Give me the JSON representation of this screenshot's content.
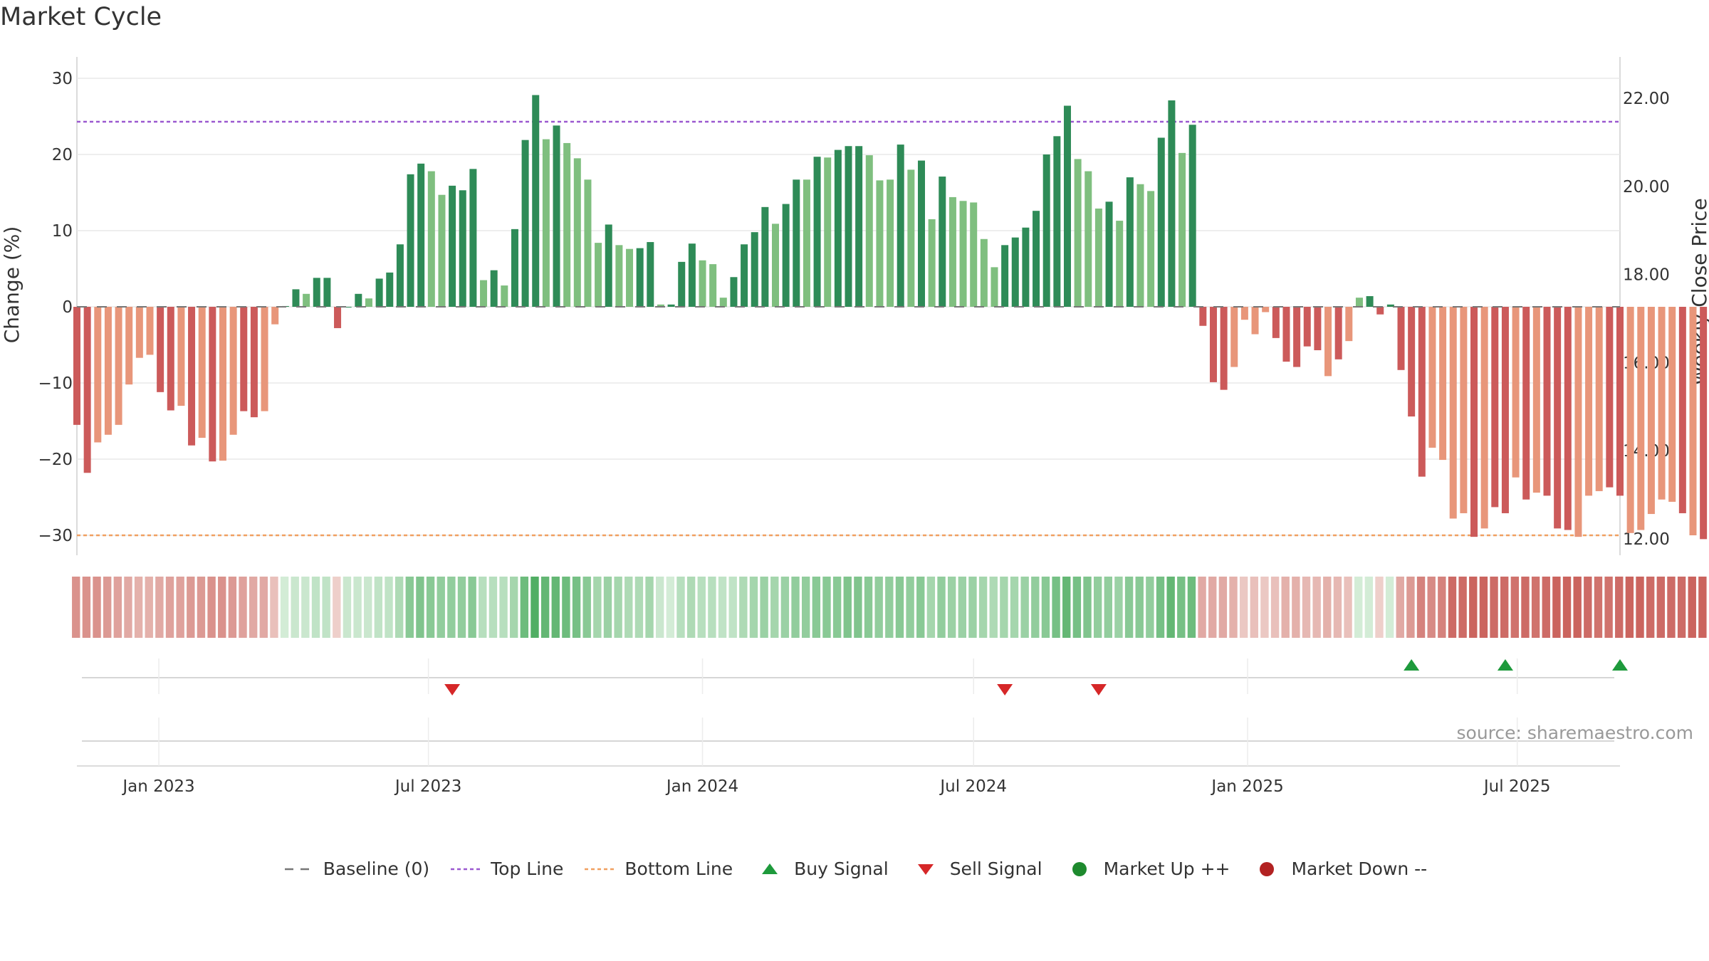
{
  "title": "Market Cycle",
  "source_text": "source: sharemaestro.com",
  "legend": [
    {
      "label": "Baseline (0)",
      "icon": "dash-line",
      "color": "#777777"
    },
    {
      "label": "Top Line",
      "icon": "dotted-line",
      "color": "#9b59d0"
    },
    {
      "label": "Bottom Line",
      "icon": "dotted-line",
      "color": "#f0a060"
    },
    {
      "label": "Buy Signal",
      "icon": "triangle-up",
      "color": "#1e9a3c"
    },
    {
      "label": "Sell Signal",
      "icon": "triangle-down",
      "color": "#d62728"
    },
    {
      "label": "Market Up ++",
      "icon": "circle",
      "color": "#1e8a2e"
    },
    {
      "label": "Market Down --",
      "icon": "circle",
      "color": "#b22222"
    }
  ],
  "chart_data": {
    "type": "bar",
    "title": "Market Cycle",
    "ylabel": "Change (%)",
    "y2label": "Weekly Close Price",
    "ylim": [
      -33,
      33
    ],
    "yticks": [
      30,
      20,
      10,
      0,
      -10,
      -20,
      -30
    ],
    "ytick_labels": [
      "30",
      "20",
      "10",
      "0",
      "−10",
      "−20",
      "−30"
    ],
    "y2lim": [
      11.6,
      23.1
    ],
    "y2ticks": [
      22.0,
      20.0,
      18.0,
      16.0,
      14.0,
      12.0
    ],
    "y2tick_labels": [
      "22.00",
      "20.00",
      "18.00",
      "16.00",
      "14.00",
      "12.00"
    ],
    "top_line": 24.3,
    "bottom_line": -30,
    "xdomain": [
      "2022-11-07",
      "2025-09-08"
    ],
    "xticks": [
      {
        "date": "2023-01-01",
        "label": "Jan 2023"
      },
      {
        "date": "2023-07-01",
        "label": "Jul 2023"
      },
      {
        "date": "2024-01-01",
        "label": "Jan 2024"
      },
      {
        "date": "2024-07-01",
        "label": "Jul 2024"
      },
      {
        "date": "2025-01-01",
        "label": "Jan 2025"
      },
      {
        "date": "2025-07-01",
        "label": "Jul 2025"
      }
    ],
    "start_week": "2022-11-07",
    "week_step_days": 7,
    "values": [
      -15.5,
      -21.8,
      -17.8,
      -16.8,
      -15.5,
      -10.2,
      -6.7,
      -6.3,
      -11.2,
      -13.6,
      -13.0,
      -18.2,
      -17.2,
      -20.3,
      -20.2,
      -16.8,
      -13.7,
      -14.5,
      -13.7,
      -2.3,
      0.1,
      2.3,
      1.7,
      3.8,
      3.8,
      -2.8,
      0.0,
      1.7,
      1.1,
      3.7,
      4.5,
      8.2,
      17.4,
      18.8,
      17.8,
      14.7,
      15.9,
      15.3,
      18.1,
      3.5,
      4.8,
      2.8,
      10.2,
      21.9,
      27.8,
      22.0,
      23.8,
      21.5,
      19.5,
      16.7,
      8.4,
      10.8,
      8.1,
      7.6,
      7.7,
      8.5,
      0.3,
      0.3,
      5.9,
      8.3,
      6.1,
      5.6,
      1.2,
      3.9,
      8.2,
      9.8,
      13.1,
      10.9,
      13.5,
      16.7,
      16.7,
      19.7,
      19.6,
      20.6,
      21.1,
      21.1,
      19.9,
      16.6,
      16.7,
      21.3,
      18.0,
      19.2,
      11.5,
      17.1,
      14.4,
      13.9,
      13.7,
      8.9,
      5.2,
      8.1,
      9.1,
      10.4,
      12.6,
      20.0,
      22.4,
      26.4,
      19.4,
      17.8,
      12.9,
      13.8,
      11.3,
      17.0,
      16.1,
      15.2,
      22.2,
      27.1,
      20.2,
      23.9,
      -2.5,
      -9.9,
      -10.9,
      -7.9,
      -1.7,
      -3.6,
      -0.7,
      -4.1,
      -7.2,
      -7.9,
      -5.2,
      -5.7,
      -9.1,
      -6.9,
      -4.5,
      1.2,
      1.4,
      -1.0,
      0.3,
      -8.3,
      -14.4,
      -22.3,
      -18.5,
      -20.1,
      -27.8,
      -27.1,
      -30.2,
      -29.1,
      -26.3,
      -27.1,
      -22.4,
      -25.3,
      -24.4,
      -24.8,
      -29.1,
      -29.3,
      -30.2,
      -24.8,
      -24.2,
      -23.7,
      -24.8,
      -29.7,
      -29.3,
      -27.2,
      -25.3,
      -25.6,
      -27.1,
      -30.0,
      -30.5
    ],
    "bar_shade": [
      1,
      1,
      0,
      0,
      0,
      0,
      0,
      0,
      1,
      1,
      0,
      1,
      0,
      1,
      0,
      0,
      1,
      1,
      0,
      0,
      1,
      1,
      0,
      1,
      1,
      1,
      1,
      1,
      0,
      1,
      1,
      1,
      1,
      1,
      0,
      0,
      1,
      1,
      1,
      0,
      1,
      0,
      1,
      1,
      1,
      0,
      1,
      0,
      0,
      0,
      0,
      1,
      0,
      0,
      1,
      1,
      0,
      1,
      1,
      1,
      0,
      0,
      0,
      1,
      1,
      1,
      1,
      0,
      1,
      1,
      0,
      1,
      0,
      1,
      1,
      1,
      0,
      0,
      0,
      1,
      0,
      1,
      0,
      1,
      0,
      0,
      0,
      0,
      0,
      1,
      1,
      1,
      1,
      1,
      1,
      1,
      0,
      0,
      0,
      1,
      0,
      1,
      0,
      0,
      1,
      1,
      0,
      1,
      1,
      1,
      1,
      0,
      0,
      0,
      0,
      1,
      1,
      1,
      1,
      1,
      0,
      1,
      0,
      0,
      1,
      1,
      1,
      1,
      1,
      1,
      0,
      0,
      0,
      0,
      1,
      0,
      1,
      1,
      0,
      1,
      0,
      1,
      1,
      1,
      0,
      0,
      0,
      1,
      1,
      0,
      0,
      0,
      0,
      0,
      1,
      0,
      1,
      1
    ],
    "heat_strip": [
      0.6,
      0.6,
      0.6,
      0.55,
      0.5,
      0.45,
      0.4,
      0.4,
      0.45,
      0.5,
      0.5,
      0.55,
      0.55,
      0.6,
      0.6,
      0.55,
      0.5,
      0.45,
      0.45,
      0.3,
      0.2,
      0.25,
      0.25,
      0.3,
      0.3,
      0.2,
      0.25,
      0.25,
      0.25,
      0.3,
      0.3,
      0.4,
      0.6,
      0.65,
      0.6,
      0.55,
      0.55,
      0.55,
      0.6,
      0.35,
      0.35,
      0.35,
      0.45,
      0.75,
      0.9,
      0.8,
      0.8,
      0.75,
      0.7,
      0.6,
      0.45,
      0.5,
      0.45,
      0.4,
      0.4,
      0.45,
      0.25,
      0.2,
      0.35,
      0.4,
      0.35,
      0.35,
      0.3,
      0.3,
      0.4,
      0.45,
      0.5,
      0.45,
      0.5,
      0.55,
      0.55,
      0.6,
      0.6,
      0.6,
      0.65,
      0.65,
      0.6,
      0.55,
      0.55,
      0.6,
      0.55,
      0.6,
      0.45,
      0.55,
      0.5,
      0.5,
      0.5,
      0.45,
      0.4,
      0.45,
      0.45,
      0.5,
      0.55,
      0.6,
      0.7,
      0.8,
      0.7,
      0.65,
      0.55,
      0.55,
      0.5,
      0.6,
      0.6,
      0.55,
      0.7,
      0.8,
      0.7,
      0.75,
      0.45,
      0.45,
      0.45,
      0.4,
      0.25,
      0.3,
      0.25,
      0.3,
      0.4,
      0.4,
      0.35,
      0.35,
      0.4,
      0.35,
      0.3,
      0.2,
      0.2,
      0.2,
      0.2,
      0.45,
      0.55,
      0.7,
      0.65,
      0.7,
      0.85,
      0.85,
      0.9,
      0.9,
      0.85,
      0.85,
      0.8,
      0.85,
      0.8,
      0.85,
      0.9,
      0.9,
      0.9,
      0.85,
      0.8,
      0.8,
      0.85,
      0.9,
      0.9,
      0.85,
      0.85,
      0.85,
      0.85,
      0.9,
      0.9
    ],
    "buy_signals": [
      "2025-04-21",
      "2025-06-23",
      "2025-09-08"
    ],
    "sell_signals": [
      "2023-07-17",
      "2024-07-22",
      "2024-09-23"
    ]
  }
}
